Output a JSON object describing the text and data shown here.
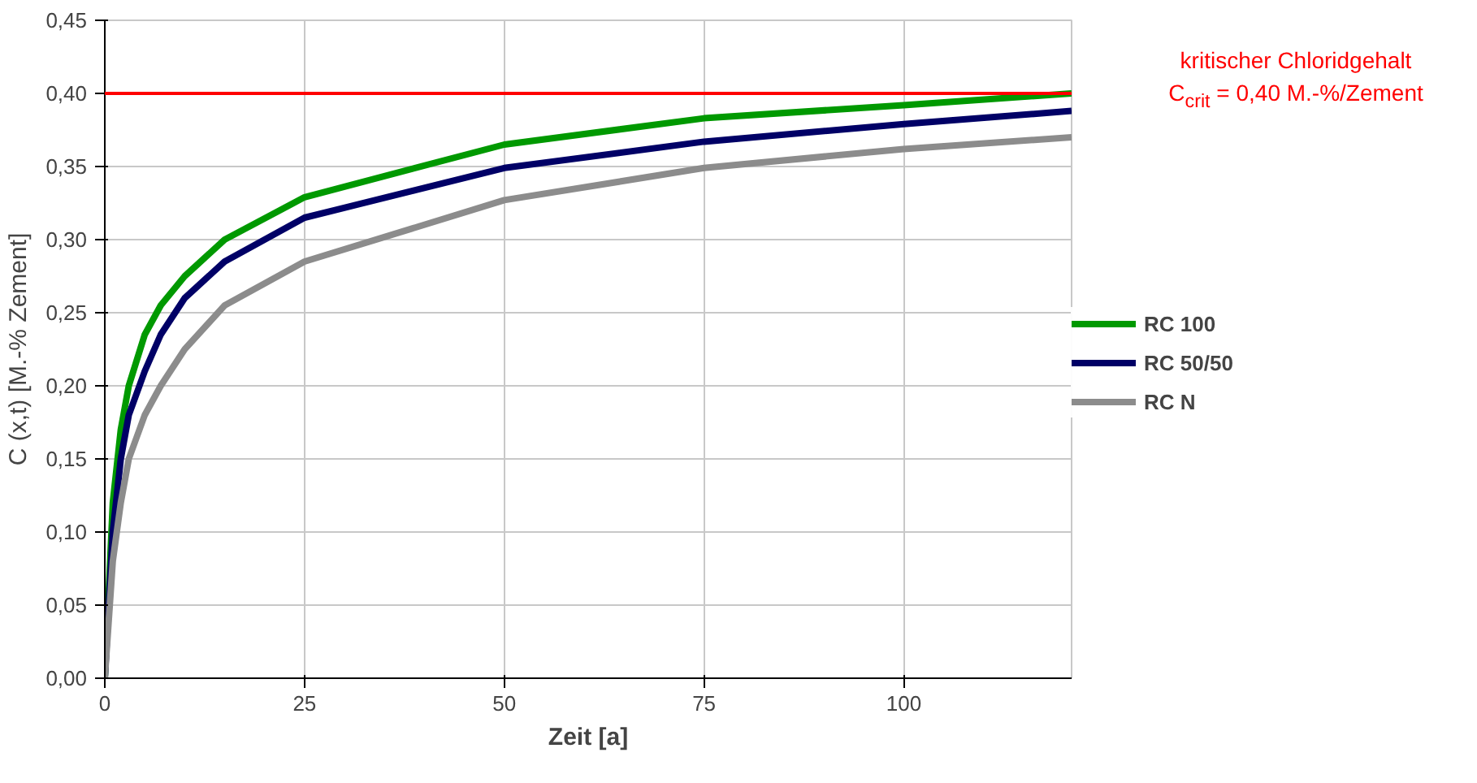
{
  "chart_data": {
    "type": "line",
    "xlabel": "Zeit [a]",
    "ylabel": "C (x,t) [M.-% Zement]",
    "xlim": [
      0,
      121
    ],
    "xticks": [
      0,
      25,
      50,
      75,
      100
    ],
    "ylim": [
      0,
      0.45
    ],
    "yticks": [
      {
        "value": 0,
        "label": "0,00"
      },
      {
        "value": 0.05,
        "label": "0,05"
      },
      {
        "value": 0.1,
        "label": "0,10"
      },
      {
        "value": 0.15,
        "label": "0,15"
      },
      {
        "value": 0.2,
        "label": "0,20"
      },
      {
        "value": 0.25,
        "label": "0,25"
      },
      {
        "value": 0.3,
        "label": "0,30"
      },
      {
        "value": 0.35,
        "label": "0,35"
      },
      {
        "value": 0.4,
        "label": "0,40"
      },
      {
        "value": 0.45,
        "label": "0,45"
      }
    ],
    "grid": true,
    "legend": "right",
    "marker": "none",
    "line_style": "solid",
    "x": [
      0,
      1,
      2,
      3,
      5,
      7,
      10,
      15,
      25,
      50,
      75,
      100,
      121
    ],
    "series": [
      {
        "name": "RC 100",
        "color": "#009900",
        "values": [
          0,
          0.12,
          0.17,
          0.2,
          0.235,
          0.255,
          0.275,
          0.3,
          0.329,
          0.365,
          0.383,
          0.392,
          0.4
        ]
      },
      {
        "name": "RC 50/50",
        "color": "#000066",
        "values": [
          0,
          0.1,
          0.15,
          0.18,
          0.21,
          0.235,
          0.26,
          0.285,
          0.315,
          0.349,
          0.367,
          0.379,
          0.388
        ]
      },
      {
        "name": "RC N",
        "color": "#8c8c8c",
        "values": [
          0,
          0.08,
          0.12,
          0.15,
          0.18,
          0.2,
          0.225,
          0.255,
          0.285,
          0.327,
          0.349,
          0.362,
          0.37
        ]
      }
    ],
    "ref_lines": [
      {
        "axis": "y",
        "value": 0.4,
        "color": "#ff0000",
        "line_style": "solid",
        "label": "kritischer Chloridgehalt\nC$_{crit}$ = 0,40 M.-%/Zement"
      }
    ]
  }
}
